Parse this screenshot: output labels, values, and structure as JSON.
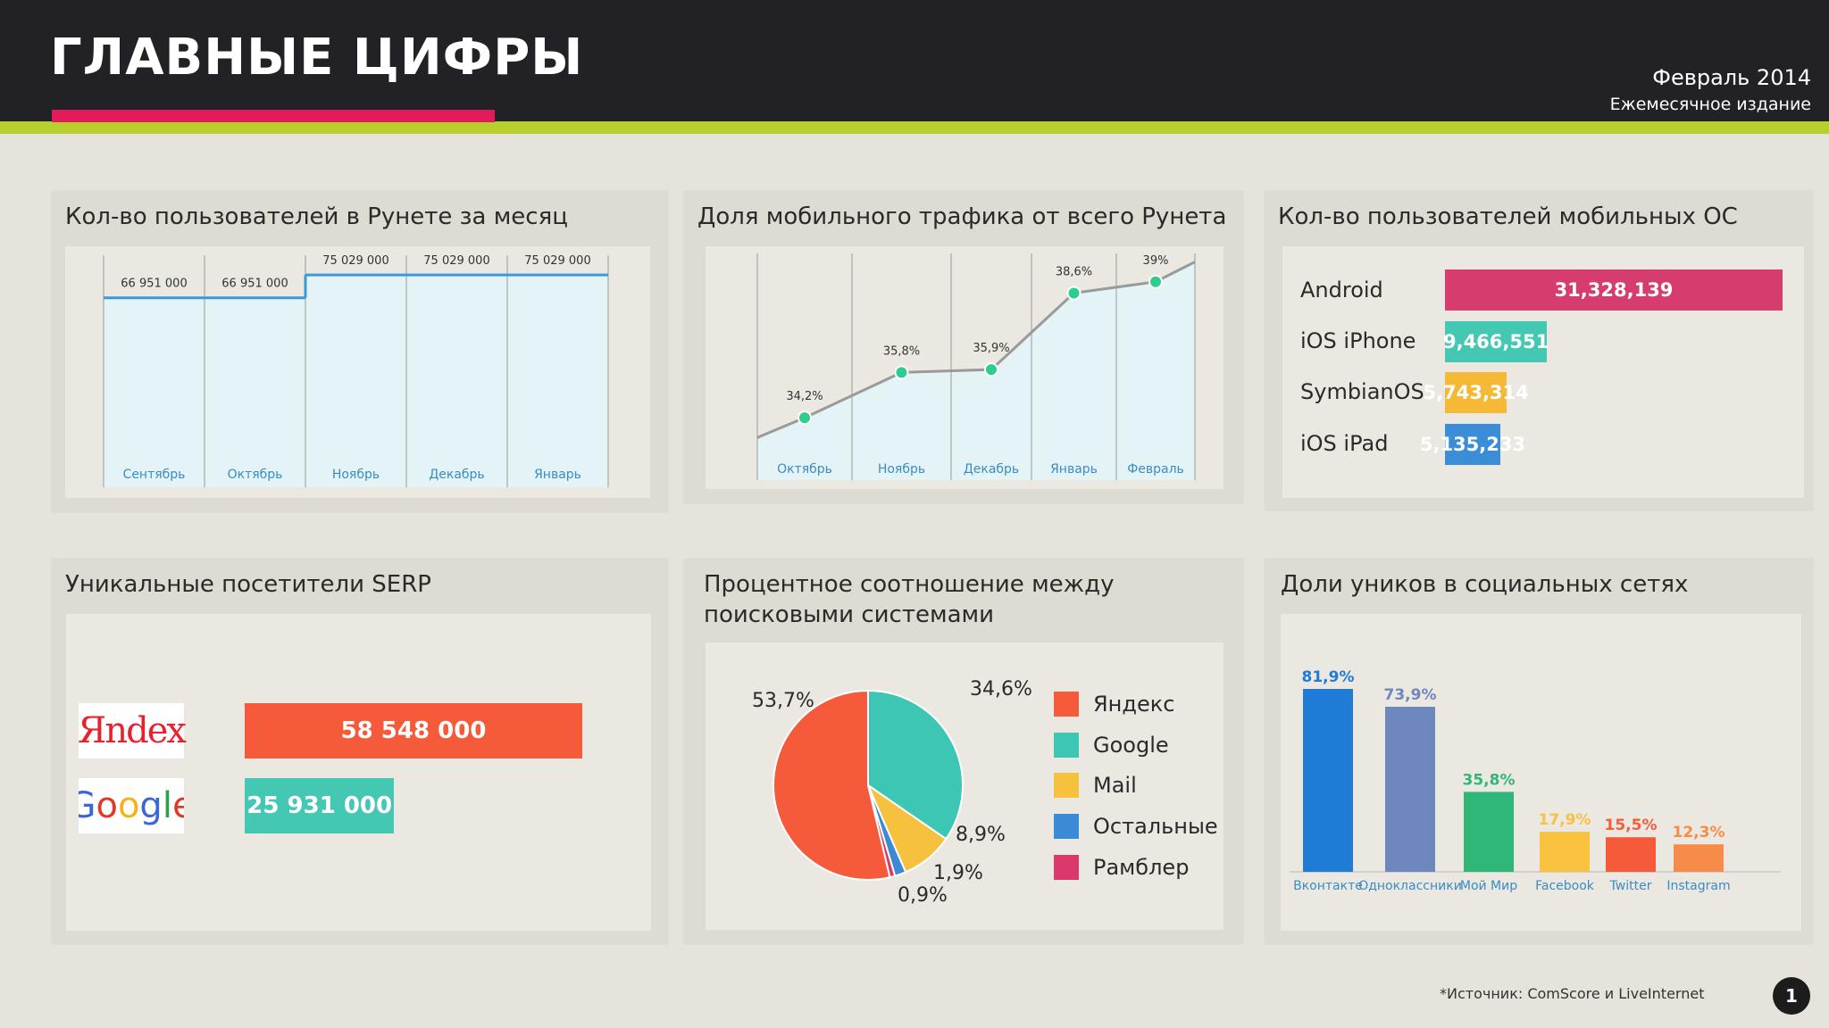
{
  "header": {
    "title": "ГЛАВНЫЕ ЦИФРЫ",
    "date": "Февраль 2014",
    "edition": "Ежемесячное издание"
  },
  "footer": {
    "source": "*Источник: ComScore и LiveInternet",
    "page_number": "1"
  },
  "colors": {
    "header_bg": "#222125",
    "accent_green": "#b9cf2e",
    "accent_pink": "#e21b5a",
    "line_blue": "#3a9ad9",
    "point_green": "#2ecc8f"
  },
  "cards": {
    "users_runet": {
      "title": "Кол-во пользователей в Рунете за месяц"
    },
    "mobile_traffic": {
      "title": "Доля мобильного трафика от всего Рунета"
    },
    "mobile_os": {
      "title": "Кол-во пользователей мобильных ОС"
    },
    "serp": {
      "title": "Уникальные посетители SERP"
    },
    "search_share": {
      "title_line1": "Процентное соотношение между",
      "title_line2": "поисковыми системами"
    },
    "social": {
      "title": "Доли уников в социальных сетях"
    }
  },
  "serp_logos": {
    "yandex": "Яndex",
    "google": "Google"
  },
  "chart_data": [
    {
      "id": "users_runet",
      "type": "area",
      "categories": [
        "Сентябрь",
        "Октябрь",
        "Ноябрь",
        "Декабрь",
        "Январь"
      ],
      "values": [
        66951000,
        66951000,
        75029000,
        75029000,
        75029000
      ],
      "labels": [
        "66 951 000",
        "66 951 000",
        "75 029 000",
        "75 029 000",
        "75 029 000"
      ]
    },
    {
      "id": "mobile_traffic",
      "type": "line",
      "categories": [
        "Октябрь",
        "Ноябрь",
        "Декабрь",
        "Январь",
        "Февраль"
      ],
      "values": [
        34.2,
        35.8,
        35.9,
        38.6,
        39
      ],
      "labels": [
        "34,2%",
        "35,8%",
        "35,9%",
        "38,6%",
        "39%"
      ]
    },
    {
      "id": "mobile_os",
      "type": "bar",
      "categories": [
        "Android",
        "iOS iPhone",
        "SymbianOS",
        "iOS iPad"
      ],
      "values": [
        31328139,
        9466551,
        5743314,
        5135233
      ],
      "labels": [
        "31,328,139",
        "9,466,551",
        "5,743,314",
        "5,135,233"
      ],
      "colors": [
        "#d63d6e",
        "#44c8b4",
        "#f5b935",
        "#3a8dd6"
      ]
    },
    {
      "id": "serp",
      "type": "bar",
      "categories": [
        "Яндекс",
        "Google"
      ],
      "values": [
        58548000,
        25931000
      ],
      "labels": [
        "58 548 000",
        "25 931 000"
      ],
      "colors": [
        "#f55b3b",
        "#44c8b4"
      ]
    },
    {
      "id": "search_share",
      "type": "pie",
      "categories": [
        "Яндекс",
        "Google",
        "Mail",
        "Остальные",
        "Рамблер"
      ],
      "values": [
        53.7,
        34.6,
        8.9,
        1.9,
        0.9
      ],
      "labels": [
        "53,7%",
        "34,6%",
        "8,9%",
        "1,9%",
        "0,9%"
      ],
      "colors": [
        "#f55b3b",
        "#3cc6b4",
        "#f6c13e",
        "#3a8ad6",
        "#d93a6b"
      ]
    },
    {
      "id": "social",
      "type": "bar",
      "categories": [
        "Вконтакте",
        "Одноклассники",
        "Мой Мир",
        "Facebook",
        "Twitter",
        "Instagram"
      ],
      "values": [
        81.9,
        73.9,
        35.8,
        17.9,
        15.5,
        12.3
      ],
      "labels": [
        "81,9%",
        "73,9%",
        "35,8%",
        "17,9%",
        "15,5%",
        "12,3%"
      ],
      "colors": [
        "#1f7bd6",
        "#6f87bf",
        "#2fb77a",
        "#f8c240",
        "#f55b3b",
        "#f78c4a"
      ]
    }
  ]
}
